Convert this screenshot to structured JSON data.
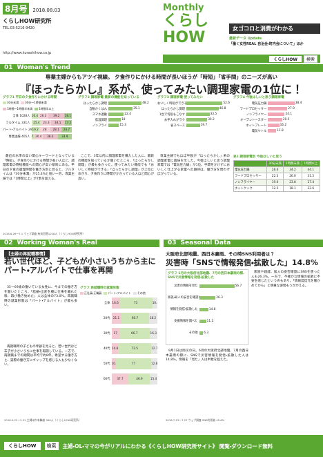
{
  "header": {
    "issue": "8月号",
    "date": "2018.08.03",
    "org": "くらしHOW研究所",
    "tel": "TEL.03-5216-9420",
    "url": "http://www.kurashihow.co.jp",
    "brand_small": "Monthly",
    "brand": "くらしHOW",
    "tagline": "女ゴコロと消費がわかる",
    "update_label": "最新データ Update",
    "update_text": "「働く女性REAL 自治会・町内会について」ほか",
    "search_word": "くらしHOW",
    "search_button": "検索"
  },
  "sections": [
    {
      "number": "01",
      "title": "Woman's Trend",
      "lead": "専業主婦からもアツイ視線。 夕食作りにかける時間が長いほうが「時短」「省手間」のニーズが高い",
      "headline": "『ほったらかし』系が、使ってみたい調理家電の1位に！",
      "charts": [
        {
          "title": "グラフ1 平日の夕食作りにかける時間",
          "legend": [
            {
              "name": "30分未満",
              "color": "#cfe6b8"
            },
            {
              "name": "30分〜1時間未満",
              "color": "#f6d3d9"
            },
            {
              "name": "1時間〜1時間半未満",
              "color": "#e9c1ca"
            },
            {
              "name": "1時間半以上",
              "color": "#a9cf8e"
            }
          ],
          "rows": [
            {
              "label": "全体 1028人",
              "values": [
                16.4,
                26.3,
                39.2,
                18.1
              ]
            },
            {
              "label": "フルタイム 331人",
              "values": [
                25.4,
                23.3,
                34.1,
                17.2
              ]
            },
            {
              "label": "パート・アルバイト 292人",
              "values": [
                19.2,
                28.0,
                28.1,
                24.7
              ]
            },
            {
              "label": "専業主婦 405人",
              "values": [
                7.4,
                20.4,
                38.3,
                33.9
              ]
            }
          ]
        },
        {
          "title": "グラフ2 調理家電 最新の機能を知っている",
          "rows": [
            {
              "label": "ほったらかし調理",
              "value": 48.2
            },
            {
              "label": "自動かくはん",
              "value": 35.1
            },
            {
              "label": "スマホ連動",
              "value": 22.4
            },
            {
              "label": "低温調理",
              "value": 18.0
            },
            {
              "label": "ノンフライ",
              "value": 15.3
            }
          ]
        },
        {
          "title": "グラフ3 調理家電 使ってみたい",
          "rows": [
            {
              "label": "おいしく時短ができる",
              "value": 52.6
            },
            {
              "label": "ほったらかし調理",
              "value": 46.8
            },
            {
              "label": "1台で何役もこなす",
              "value": 33.5
            },
            {
              "label": "お手入れがラク",
              "value": 30.2
            },
            {
              "label": "省スペース",
              "value": 19.7
            }
          ]
        },
        {
          "title": "グラフ4 今後ほしいと思う調理家電",
          "rows": [
            {
              "label": "電気圧力鍋",
              "value": 38.4
            },
            {
              "label": "フードプロセッサー",
              "value": 27.9
            },
            {
              "label": "ノンフライヤー",
              "value": 24.1
            },
            {
              "label": "オーブントースター",
              "value": 20.5
            },
            {
              "label": "ホットプレート",
              "value": 16.2
            },
            {
              "label": "電気ケトル",
              "value": 11.8
            }
          ]
        }
      ],
      "table": {
        "title": "表1 調理家電別 今後ほしいと思う",
        "header": [
          "",
          "30分未満",
          "1時間未満",
          "1時間以上"
        ],
        "rows": [
          [
            "電気圧力鍋",
            "28.6",
            "34.2",
            "44.1"
          ],
          [
            "フードプロセッサー",
            "22.3",
            "26.0",
            "31.5"
          ],
          [
            "ノンフライヤー",
            "19.0",
            "23.8",
            "27.4"
          ],
          [
            "ホットクック",
            "12.5",
            "18.1",
            "22.6"
          ]
        ]
      },
      "paragraphs": [
        "最近の水準の高い関心キーワードとなっている「時短」。夕食作りにかける時間が長い人ほど、調理家電の時短機能への関心が高い傾向にある。平日の夕食の調理時間を働き方別に見ると、フルタイムは「30分未満」が25.4%と短い一方、専業主婦では「1時間以上」が7割を超える。",
        "ここで、3年以内に調理家電を購入した人に、最新の機能を知っているか聞いたところ、「ほったらかし調理」が最も多かった。使ってみたい機能でも「おいしく時短ができる」「ほったらかし調理」が上位にあがり、夕食作りに時間がかかっている人ほど関心が高い。",
        "専業主婦でもほぼ半数が「ほったらかし」系の調理家電に興味を示した。今後ほしいと思う調理家電では「電気圧力鍋」が1位。手間をかけずにおいしく仕上がる家電への期待は、働き方を問わず広がっている。"
      ],
      "source": "2018.6.26〜7.1 ウェブ調査 有効回答1028人（くらしHOW研究所）"
    },
    {
      "number": "02",
      "title": "Working Woman's Real",
      "lead": "【主婦の再就職事情】",
      "headline": "若い世代ほど、子どもが小さいうちから主にパート・アルバイトで仕事を再開",
      "chart": {
        "title": "グラフ 再就職時の就業形態",
        "legend": [
          {
            "name": "正社員・正職員",
            "color": "#f3c9d2"
          },
          {
            "name": "パート・アルバイト",
            "color": "#cfe6b8"
          },
          {
            "name": "その他",
            "color": "#e6e6e6"
          }
        ],
        "rows": [
          {
            "label": "全体",
            "values": [
              16.6,
              73.0,
              10.4
            ]
          },
          {
            "label": "20代",
            "values": [
              21.1,
              60.7,
              18.2
            ]
          },
          {
            "label": "30代",
            "values": [
              17.0,
              66.7,
              16.3
            ]
          },
          {
            "label": "40代",
            "values": [
              14.8,
              72.5,
              12.7
            ]
          },
          {
            "label": "50代",
            "values": [
              10.2,
              77.0,
              12.8
            ]
          },
          {
            "label": "60代",
            "values": [
              37.7,
              46.9,
              15.4
            ]
          }
        ]
      },
      "paragraphs": [
        "35〜69歳の働いている女性に、今までの働き方を聞いたところ、「結婚・出産を機に仕事を離れた後、再び働き始めた」人は全体の73.0%。再就職時の就業形態は「パート・アルバイト」が最も多い。",
        "再就職時の子どもの年齢を見ると、若い世代ほど末子が小さいうちに仕事を再開している。一方で、再就職までの期間は平均で約8年。希望する働き方と、実際の働き方にギャップを感じる人も少なくない。"
      ],
      "source": "2018.5.22〜5.31 主婦ほか有職者 560人（くらしHOW研究所）"
    },
    {
      "number": "03",
      "title": "Seasonal Data",
      "lead": "大阪府北部地震、西日本豪雨、その時SNS利用者は？",
      "headline": "災害時「SNSで情報発信・拡散した」14.8%",
      "chart": {
        "title": "グラフ 6月の大阪府北部地震、7月の西日本豪雨の際、SNSで災害情報を発信・拡散した",
        "rows": [
          {
            "label": "災害の情報を見た",
            "value": 56.7
          },
          {
            "label": "家族・知人の安否を確認した",
            "value": 26.3
          },
          {
            "label": "情報を発信・拡散した",
            "value": 14.8
          },
          {
            "label": "支援情報を調べた",
            "value": 11.2
          },
          {
            "label": "その他",
            "value": 6.3
          }
        ]
      },
      "paragraphs": [
        "9月1日は防災の日。6月の大阪府北部地震、7月の西日本豪雨の際に、SNSで災害情報を発信・拡散した人は14.8%。情報を「見た」人は半数を超えた。",
        "家族や親戚、知人の安否確認にSNSを使った人も26.3%。一方で、不確かな情報の拡散に不安を感じたという声もあり、「情報発信元を確かめてから」と慎重な姿勢もうかがえる。"
      ],
      "source": "2018.7.23〜7.27 ウェブ調査 SNS利用者 45.6%"
    }
  ],
  "footer": {
    "search_word": "くらしHOW",
    "search_button": "検索",
    "text": "主婦・OL・ママの今がリアルにわかる《くらしHOW研究所サイト》 閲覧・ダウンロード無料"
  }
}
